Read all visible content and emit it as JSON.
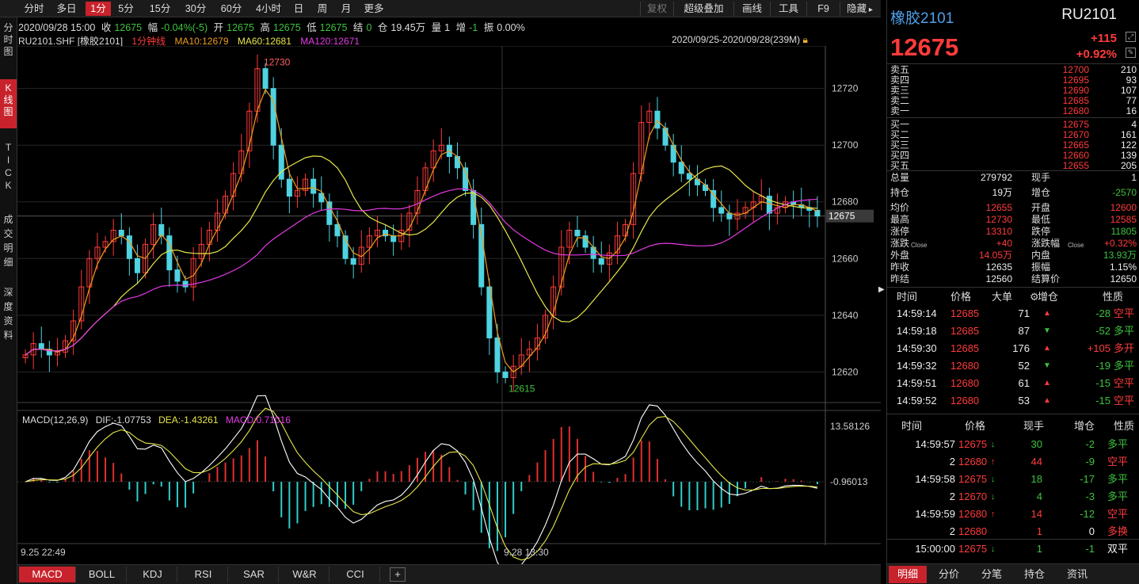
{
  "toolbar": {
    "periods": [
      "分时",
      "多日",
      "1分",
      "5分",
      "15分",
      "30分",
      "60分",
      "4小时",
      "日",
      "周",
      "月",
      "更多"
    ],
    "active_period": "1分",
    "right": [
      "复权",
      "超级叠加",
      "画线",
      "工具",
      "F9",
      "隐藏"
    ]
  },
  "leftnav": [
    {
      "label": "分\n时\n图",
      "active": false
    },
    {
      "label": "K\n线\n图",
      "active": true
    },
    {
      "label": "T\nI\nC\nK",
      "active": false
    },
    {
      "label": "成\n交\n明\n细",
      "active": false
    },
    {
      "label": "深\n度\n资\n料",
      "active": false
    }
  ],
  "infobar": {
    "datetime": "2020/09/28 15:00",
    "close_label": "收",
    "close": "12675",
    "change_label": "幅",
    "change": "-0.04%(-5)",
    "open_label": "开",
    "open": "12675",
    "high_label": "高",
    "high": "12675",
    "low_label": "低",
    "low": "12675",
    "settle_label": "结",
    "settle": "0",
    "oi_label": "仓",
    "oi": "19.45万",
    "vol_label": "量",
    "vol": "1",
    "inc_label": "增",
    "inc": "-1",
    "amp_label": "振",
    "amp": "0.00%"
  },
  "legend": {
    "symbol": "RU2101.SHF [橡胶2101]",
    "kline": "1分钟线",
    "ma10": "MA10:12679",
    "ma60": "MA60:12681",
    "ma120": "MA120:12671",
    "range": "2020/09/25-2020/09/28(239M)"
  },
  "chart_data": {
    "type": "candlestick",
    "y_ticks": [
      "12720",
      "12700",
      "12680",
      "12660",
      "12640",
      "12620"
    ],
    "y_range": [
      12612,
      12735
    ],
    "last_price": "12675",
    "max_label": "12730",
    "min_label": "12615",
    "x_labels": [
      "9.25 22:49",
      "9.28 13:30"
    ],
    "close_series": [
      12626,
      12630,
      12628,
      12626,
      12627,
      12631,
      12638,
      12650,
      12660,
      12664,
      12666,
      12670,
      12668,
      12660,
      12655,
      12665,
      12672,
      12668,
      12656,
      12652,
      12650,
      12660,
      12665,
      12670,
      12676,
      12682,
      12690,
      12698,
      12712,
      12727,
      12720,
      12700,
      12688,
      12682,
      12684,
      12688,
      12683,
      12680,
      12672,
      12668,
      12660,
      12658,
      12664,
      12668,
      12670,
      12668,
      12666,
      12670,
      12676,
      12684,
      12692,
      12698,
      12700,
      12696,
      12692,
      12684,
      12672,
      12650,
      12632,
      12620,
      12618,
      12622,
      12626,
      12628,
      12632,
      12640,
      12650,
      12664,
      12670,
      12668,
      12664,
      12660,
      12658,
      12662,
      12668,
      12672,
      12690,
      12708,
      12712,
      12706,
      12700,
      12694,
      12690,
      12688,
      12686,
      12684,
      12678,
      12676,
      12674,
      12676,
      12678,
      12680,
      12682,
      12676,
      12678,
      12680,
      12679,
      12678,
      12677,
      12675
    ],
    "ma10_end": 12679,
    "ma60_end": 12681,
    "ma120_end": 12671,
    "macd": {
      "label": "MACD(12,26,9)",
      "dif": "DIF:-1.07753",
      "dea": "DEA:-1.43261",
      "macd": "MACD:0.71016",
      "top": "13.58126",
      "mid": "-0.96013"
    }
  },
  "quote": {
    "name": "橡胶2101",
    "code": "RU2101",
    "price": "12675",
    "change": "+115",
    "change_pct": "+0.92%"
  },
  "orderbook": [
    {
      "label": "卖五",
      "price": "12700",
      "vol": "210"
    },
    {
      "label": "卖四",
      "price": "12695",
      "vol": "93"
    },
    {
      "label": "卖三",
      "price": "12690",
      "vol": "107"
    },
    {
      "label": "卖二",
      "price": "12685",
      "vol": "77"
    },
    {
      "label": "卖一",
      "price": "12680",
      "vol": "16"
    },
    {
      "label": "买一",
      "price": "12675",
      "vol": "4"
    },
    {
      "label": "买二",
      "price": "12670",
      "vol": "161"
    },
    {
      "label": "买三",
      "price": "12665",
      "vol": "122"
    },
    {
      "label": "买四",
      "price": "12660",
      "vol": "139"
    },
    {
      "label": "买五",
      "price": "12655",
      "vol": "205"
    }
  ],
  "stats": [
    {
      "l1": "总量",
      "v1": "279792",
      "l2": "现手",
      "v2": "1",
      "c1": "w",
      "c2": "w"
    },
    {
      "l1": "持仓",
      "v1": "19万",
      "l2": "增仓",
      "v2": "-2570",
      "c1": "w",
      "c2": "g"
    },
    {
      "l1": "均价",
      "v1": "12655",
      "l2": "开盘",
      "v2": "12600",
      "c1": "r",
      "c2": "r"
    },
    {
      "l1": "最高",
      "v1": "12730",
      "l2": "最低",
      "v2": "12585",
      "c1": "r",
      "c2": "r"
    },
    {
      "l1": "涨停",
      "v1": "13310",
      "l2": "跌停",
      "v2": "11805",
      "c1": "r",
      "c2": "g"
    },
    {
      "l1": "涨跌",
      "v1": "+40",
      "l2": "涨跌幅",
      "v2": "+0.32%",
      "c1": "r",
      "c2": "r"
    },
    {
      "l1": "外盘",
      "v1": "14.05万",
      "l2": "内盘",
      "v2": "13.93万",
      "c1": "r",
      "c2": "g"
    },
    {
      "l1": "昨收",
      "v1": "12635",
      "l2": "振幅",
      "v2": "1.15%",
      "c1": "w",
      "c2": "w"
    },
    {
      "l1": "昨结",
      "v1": "12560",
      "l2": "结算价",
      "v2": "12650",
      "c1": "w",
      "c2": "w"
    }
  ],
  "stats_sub": {
    "a": "Close",
    "b": "Close"
  },
  "bigorders": {
    "headers": [
      "时间",
      "价格",
      "大单",
      "增仓",
      "性质"
    ],
    "rows": [
      {
        "time": "14:59:14",
        "price": "12685",
        "vol": "71",
        "dir": "up",
        "inc": "-28",
        "type": "空平",
        "tc": "r"
      },
      {
        "time": "14:59:18",
        "price": "12685",
        "vol": "87",
        "dir": "down",
        "inc": "-52",
        "type": "多平",
        "tc": "g"
      },
      {
        "time": "14:59:30",
        "price": "12685",
        "vol": "176",
        "dir": "up",
        "inc": "+105",
        "type": "多开",
        "tc": "r"
      },
      {
        "time": "14:59:32",
        "price": "12680",
        "vol": "52",
        "dir": "down",
        "inc": "-19",
        "type": "多平",
        "tc": "g"
      },
      {
        "time": "14:59:51",
        "price": "12680",
        "vol": "61",
        "dir": "up",
        "inc": "-15",
        "type": "空平",
        "tc": "r"
      },
      {
        "time": "14:59:52",
        "price": "12680",
        "vol": "53",
        "dir": "up",
        "inc": "-15",
        "type": "空平",
        "tc": "r"
      }
    ]
  },
  "ticks": {
    "headers": [
      "时间",
      "价格",
      "现手",
      "增仓",
      "性质"
    ],
    "rows": [
      {
        "time": "14:59:57",
        "price": "12675",
        "dir": "down",
        "vol": "30",
        "inc": "-2",
        "type": "多平",
        "pc": "r",
        "vc": "g",
        "tc": "g"
      },
      {
        "time": "2",
        "price": "12680",
        "dir": "up",
        "vol": "44",
        "inc": "-9",
        "type": "空平",
        "pc": "r",
        "vc": "r",
        "tc": "r"
      },
      {
        "time": "14:59:58",
        "price": "12675",
        "dir": "down",
        "vol": "18",
        "inc": "-17",
        "type": "多平",
        "pc": "r",
        "vc": "g",
        "tc": "g"
      },
      {
        "time": "2",
        "price": "12670",
        "dir": "down",
        "vol": "4",
        "inc": "-3",
        "type": "多平",
        "pc": "r",
        "vc": "g",
        "tc": "g"
      },
      {
        "time": "14:59:59",
        "price": "12680",
        "dir": "up",
        "vol": "14",
        "inc": "-12",
        "type": "空平",
        "pc": "r",
        "vc": "r",
        "tc": "r"
      },
      {
        "time": "2",
        "price": "12680",
        "dir": "",
        "vol": "1",
        "inc": "0",
        "type": "多换",
        "pc": "r",
        "vc": "r",
        "tc": "r"
      },
      {
        "time": "15:00:00",
        "price": "12675",
        "dir": "down",
        "vol": "1",
        "inc": "-1",
        "type": "双平",
        "pc": "r",
        "vc": "g",
        "tc": "w"
      }
    ]
  },
  "bottom_tabs": [
    "MACD",
    "BOLL",
    "KDJ",
    "RSI",
    "SAR",
    "W&R",
    "CCI"
  ],
  "right_tabs": [
    "明细",
    "分价",
    "分笔",
    "持仓",
    "资讯"
  ],
  "colors": {
    "up": "#ff3b3b",
    "down": "#3ec23e",
    "accent": "#c8232c",
    "cyan": "#4fd3e0",
    "ma10": "#f09b1e",
    "ma60": "#e6e64a",
    "ma120": "#e53ae5"
  }
}
